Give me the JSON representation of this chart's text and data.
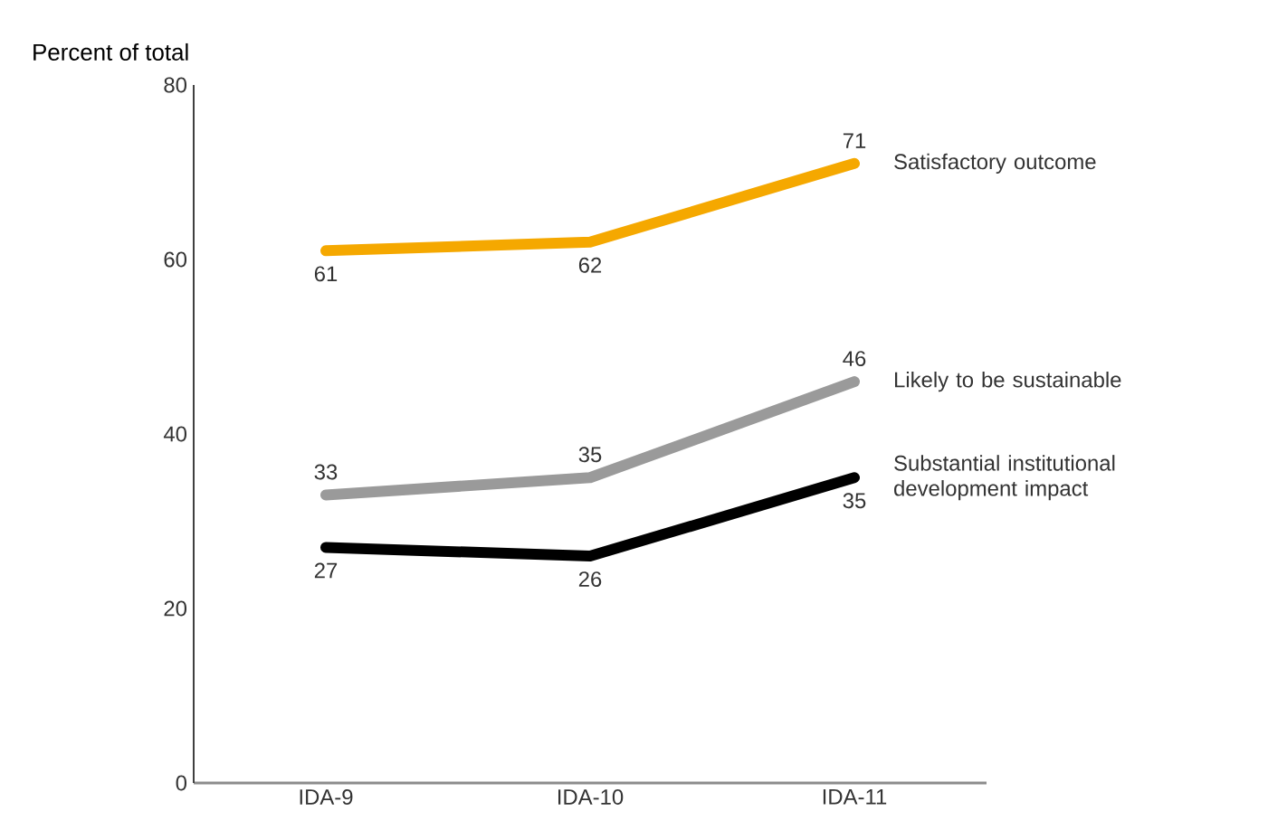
{
  "chart_data": {
    "type": "line",
    "ylabel": "Percent of total",
    "categories": [
      "IDA-9",
      "IDA-10",
      "IDA-11"
    ],
    "series": [
      {
        "name": "Satisfactory outcome",
        "color": "#f5a800",
        "values": [
          61,
          62,
          71
        ]
      },
      {
        "name": "Likely to be sustainable",
        "color": "#9a9a9a",
        "values": [
          33,
          35,
          46
        ]
      },
      {
        "name": "Substantial institutional development impact",
        "color": "#000000",
        "values": [
          27,
          26,
          35
        ]
      }
    ],
    "ylim": [
      0,
      80
    ],
    "yticks": [
      0,
      20,
      40,
      60,
      80
    ],
    "data_labels": true
  }
}
